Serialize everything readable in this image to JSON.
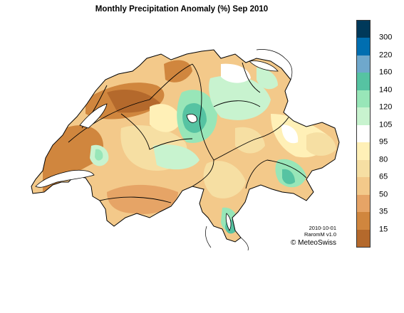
{
  "title": "Monthly Precipitation Anomaly (%) Sep 2010",
  "legend": {
    "colors": [
      "#00395a",
      "#006eb0",
      "#6fa8cc",
      "#56c3a2",
      "#98e6b8",
      "#c8f3cf",
      "#ffffff",
      "#fff0b7",
      "#f6dfa3",
      "#f3c98a",
      "#e6a466",
      "#d0863e",
      "#b4692c"
    ],
    "labels": [
      "300",
      "220",
      "160",
      "140",
      "120",
      "105",
      "95",
      "80",
      "65",
      "50",
      "35",
      "15"
    ]
  },
  "credits": {
    "date": "2010-10-01",
    "product": "RaromM v1.0",
    "copyright": "© MeteoSwiss"
  },
  "icons": [
    "switzerland-map"
  ]
}
